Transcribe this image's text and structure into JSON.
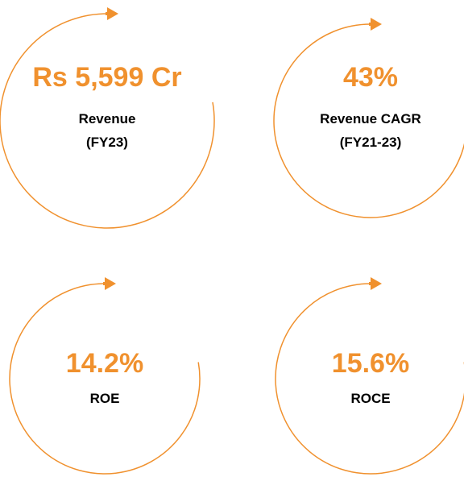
{
  "metrics": [
    {
      "value": "Rs 5,599 Cr",
      "label": [
        "Revenue",
        "(FY23)"
      ]
    },
    {
      "value": "43%",
      "label": [
        "Revenue CAGR",
        "(FY21-23)"
      ]
    },
    {
      "value": "14.2%",
      "label": [
        "ROE"
      ]
    },
    {
      "value": "15.6%",
      "label": [
        "ROCE"
      ]
    }
  ]
}
